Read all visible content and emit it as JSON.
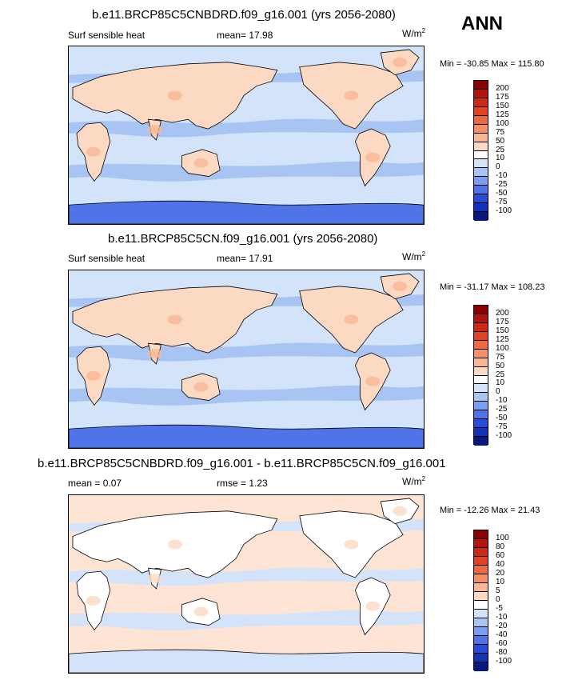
{
  "season": "ANN",
  "panels": [
    {
      "title": "b.e11.BRCP85C5CNBDRD.f09_g16.001 (yrs 2056-2080)",
      "left": "Surf sensible heat",
      "mid": "mean=  17.98",
      "units": "W/m",
      "units_sup": "2",
      "minmax": "Min = -30.85 Max = 115.80",
      "levels": [
        "200",
        "175",
        "150",
        "125",
        "100",
        "75",
        "50",
        "25",
        "10",
        "0",
        "-10",
        "-25",
        "-50",
        "-75",
        "-100"
      ],
      "colors": [
        "#8b0000",
        "#b0160e",
        "#cc2a14",
        "#df4421",
        "#ee6a3e",
        "#f58f66",
        "#f9b796",
        "#fcd9c3",
        "#ffffff",
        "#d2e3fa",
        "#a8c4f2",
        "#7b9ff0",
        "#4f74e8",
        "#284bd9",
        "#1232b8",
        "#08177d"
      ],
      "fills": {
        "ocean": "#d2e3fa",
        "band": "#a8c4f2",
        "land": "#fcd9c3",
        "hot": "#f9b796",
        "ice": "#4f74e8"
      }
    },
    {
      "title": "b.e11.BRCP85C5CN.f09_g16.001 (yrs 2056-2080)",
      "left": "Surf sensible heat",
      "mid": "mean=  17.91",
      "units": "W/m",
      "units_sup": "2",
      "minmax": "Min = -31.17 Max = 108.23",
      "levels": [
        "200",
        "175",
        "150",
        "125",
        "100",
        "75",
        "50",
        "25",
        "10",
        "0",
        "-10",
        "-25",
        "-50",
        "-75",
        "-100"
      ],
      "colors": [
        "#8b0000",
        "#b0160e",
        "#cc2a14",
        "#df4421",
        "#ee6a3e",
        "#f58f66",
        "#f9b796",
        "#fcd9c3",
        "#ffffff",
        "#d2e3fa",
        "#a8c4f2",
        "#7b9ff0",
        "#4f74e8",
        "#284bd9",
        "#1232b8",
        "#08177d"
      ],
      "fills": {
        "ocean": "#d2e3fa",
        "band": "#a8c4f2",
        "land": "#fcd9c3",
        "hot": "#f9b796",
        "ice": "#4f74e8"
      }
    },
    {
      "title": "b.e11.BRCP85C5CNBDRD.f09_g16.001 - b.e11.BRCP85C5CN.f09_g16.001",
      "left": "mean =   0.07",
      "mid": "rmse =   1.23",
      "units": "W/m",
      "units_sup": "2",
      "minmax": "Min = -12.26 Max =  21.43",
      "levels": [
        "100",
        "80",
        "60",
        "40",
        "20",
        "10",
        "5",
        "0",
        "-5",
        "-10",
        "-20",
        "-40",
        "-60",
        "-80",
        "-100"
      ],
      "colors": [
        "#8b0000",
        "#b0160e",
        "#cc2a14",
        "#df4421",
        "#ee6a3e",
        "#f58f66",
        "#f9b796",
        "#fcd9c3",
        "#ffffff",
        "#d2e3fa",
        "#a8c4f2",
        "#7b9ff0",
        "#4f74e8",
        "#284bd9",
        "#1232b8",
        "#08177d"
      ],
      "fills": {
        "ocean": "#fde4d4",
        "band": "#d2e3fa",
        "land": "#ffffff",
        "hot": "#fcd9c3",
        "ice": "#d2e3fa"
      }
    }
  ]
}
